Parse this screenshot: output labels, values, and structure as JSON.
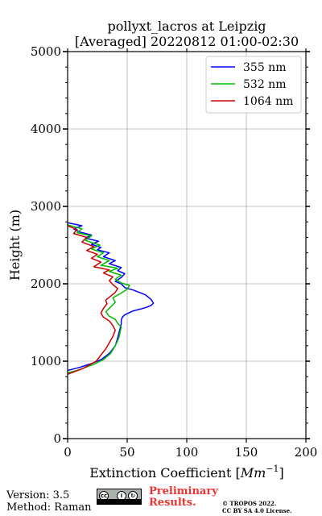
{
  "chart_data": {
    "type": "line",
    "title_line1": "pollyxt_lacros at Leipzig",
    "title_line2": "[Averaged] 20220812 01:00-02:30",
    "xlabel_text": "Extinction Coefficient [",
    "xlabel_unit": "Mm",
    "xlabel_exp": "−1",
    "xlabel_close": "]",
    "ylabel": "Height (m)",
    "xlim": [
      0,
      200
    ],
    "ylim": [
      0,
      5000
    ],
    "xticks": [
      0,
      50,
      100,
      150,
      200
    ],
    "yticks": [
      0,
      1000,
      2000,
      3000,
      4000,
      5000
    ],
    "grid": true,
    "legend_position": "top-right",
    "series": [
      {
        "name": "355 nm",
        "color": "#0000ff",
        "x": [
          0,
          10,
          20,
          28,
          35,
          40,
          42,
          43,
          44,
          45,
          45,
          46,
          48,
          55,
          65,
          70,
          72,
          70,
          65,
          55,
          48,
          45,
          40,
          45,
          48,
          42,
          45,
          35,
          40,
          30,
          35,
          25,
          28,
          20,
          26,
          15,
          20,
          10,
          5,
          12,
          0
        ],
        "y": [
          880,
          920,
          970,
          1020,
          1100,
          1200,
          1300,
          1360,
          1420,
          1480,
          1530,
          1570,
          1600,
          1650,
          1690,
          1720,
          1750,
          1800,
          1860,
          1920,
          1950,
          2000,
          2030,
          2080,
          2130,
          2170,
          2210,
          2260,
          2300,
          2350,
          2400,
          2440,
          2470,
          2510,
          2550,
          2590,
          2630,
          2670,
          2710,
          2750,
          2790
        ]
      },
      {
        "name": "532 nm",
        "color": "#00bb00",
        "x": [
          0,
          8,
          15,
          22,
          30,
          36,
          40,
          43,
          44,
          45,
          42,
          40,
          35,
          32,
          36,
          40,
          38,
          45,
          50,
          52,
          45,
          40,
          45,
          35,
          42,
          28,
          35,
          25,
          30,
          20,
          27,
          15,
          20,
          8,
          12,
          0
        ],
        "y": [
          850,
          880,
          920,
          960,
          1020,
          1100,
          1200,
          1300,
          1370,
          1440,
          1490,
          1540,
          1580,
          1640,
          1700,
          1760,
          1820,
          1880,
          1930,
          1980,
          2010,
          2060,
          2110,
          2160,
          2200,
          2240,
          2300,
          2350,
          2400,
          2450,
          2500,
          2560,
          2620,
          2660,
          2710,
          2760
        ]
      },
      {
        "name": "1064 nm",
        "color": "#cc0000",
        "x": [
          0,
          5,
          12,
          18,
          24,
          28,
          32,
          35,
          38,
          40,
          38,
          35,
          30,
          28,
          30,
          33,
          32,
          36,
          40,
          42,
          38,
          35,
          38,
          30,
          35,
          22,
          28,
          20,
          25,
          16,
          22,
          12,
          16,
          5,
          8,
          0
        ],
        "y": [
          830,
          860,
          900,
          950,
          1000,
          1080,
          1160,
          1240,
          1320,
          1400,
          1460,
          1520,
          1570,
          1620,
          1680,
          1740,
          1790,
          1840,
          1890,
          1940,
          1990,
          2040,
          2090,
          2140,
          2180,
          2220,
          2280,
          2330,
          2380,
          2430,
          2480,
          2540,
          2600,
          2650,
          2700,
          2750
        ]
      }
    ]
  },
  "footer": {
    "version": "Version: 3.5",
    "method": "Method: Raman",
    "prelim_line1": "Preliminary",
    "prelim_line2": "Results.",
    "copyright_line1": "© TROPOS 2022.",
    "copyright_line2": "CC BY SA 4.0 License."
  }
}
